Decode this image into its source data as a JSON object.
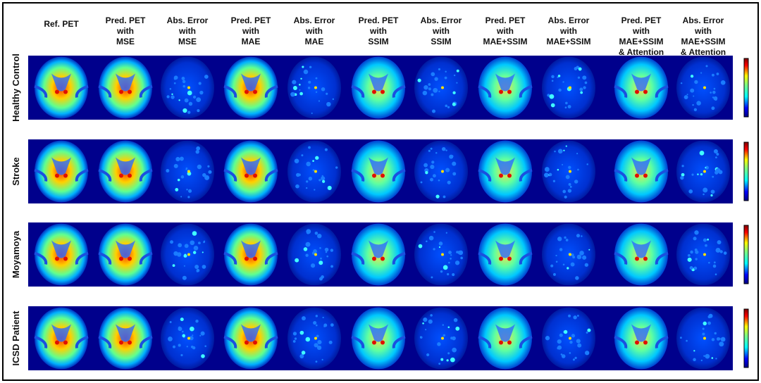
{
  "columns": [
    [
      "Ref. PET"
    ],
    [
      "Pred. PET",
      "with",
      "MSE"
    ],
    [
      "Abs. Error",
      "with",
      "MSE"
    ],
    [
      "Pred. PET",
      "with",
      "MAE"
    ],
    [
      "Abs. Error",
      "with",
      "MAE"
    ],
    [
      "Pred. PET",
      "with",
      "SSIM"
    ],
    [
      "Abs. Error",
      "with",
      "SSIM"
    ],
    [
      "Pred. PET",
      "with",
      "MAE+SSIM"
    ],
    [
      "Abs. Error",
      "with",
      "MAE+SSIM"
    ],
    [
      "Pred. PET",
      "with",
      "MAE+SSIM",
      "& Attention"
    ],
    [
      "Abs. Error",
      "with",
      "MAE+SSIM",
      "& Attention"
    ]
  ],
  "rows": [
    "Healthy Control",
    "Stroke",
    "Moyamoya",
    "ICSD Patient"
  ]
}
